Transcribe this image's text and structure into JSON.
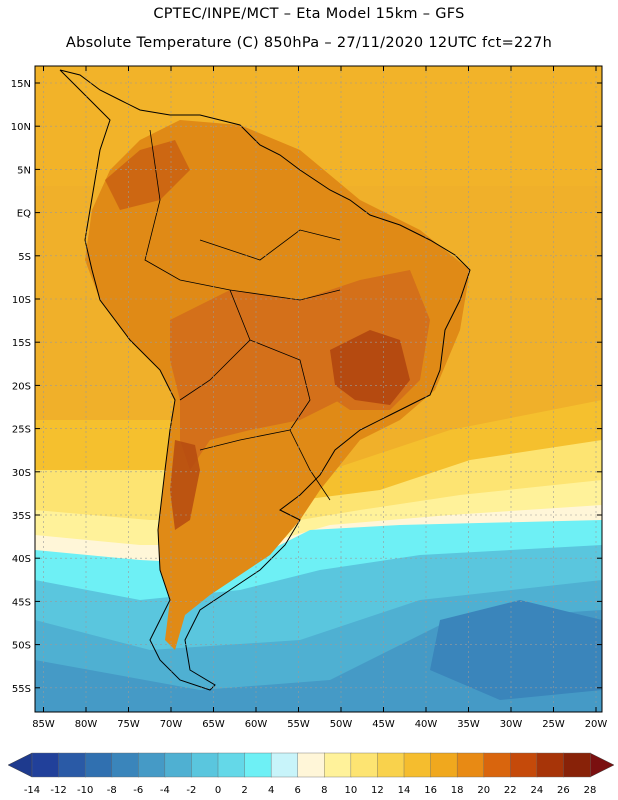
{
  "title_line1": "CPTEC/INPE/MCT –  Eta Model 15km – GFS",
  "title_line2": "Absolute Temperature (C) 850hPa – 27/11/2020 12UTC fct=227h",
  "lat_labels": [
    "15N",
    "10N",
    "5N",
    "EQ",
    "5S",
    "10S",
    "15S",
    "20S",
    "25S",
    "30S",
    "35S",
    "40S",
    "45S",
    "50S",
    "55S"
  ],
  "lon_labels": [
    "85W",
    "80W",
    "75W",
    "70W",
    "65W",
    "60W",
    "55W",
    "50W",
    "45W",
    "40W",
    "35W",
    "30W",
    "25W",
    "20W"
  ],
  "colorbar": {
    "labels": [
      "-14",
      "-12",
      "-10",
      "-8",
      "-6",
      "-4",
      "-2",
      "0",
      "2",
      "4",
      "6",
      "8",
      "10",
      "12",
      "14",
      "16",
      "18",
      "20",
      "22",
      "24",
      "26",
      "28"
    ],
    "colors": [
      "#21409a",
      "#2a5aa6",
      "#3070b0",
      "#3a85bb",
      "#459ac6",
      "#4fb0d2",
      "#5ac6de",
      "#64d8e8",
      "#6ef0f5",
      "#c8f4fa",
      "#fff6d8",
      "#fff29a",
      "#fde472",
      "#f9d24c",
      "#f5bd2e",
      "#f0a81e",
      "#e88a14",
      "#d9650d",
      "#c54a0a",
      "#a73408",
      "#882208"
    ],
    "end_low_color": "#1e3a8e",
    "end_high_color": "#7a1010"
  },
  "field_colors": {
    "ocean_warm": "#f0b02a",
    "ocean_warm2": "#f5c02e",
    "ocean_mid": "#fde472",
    "ocean_light": "#fff29a",
    "ocean_pale": "#fff6d8",
    "ocean_cyan": "#6ef0f5",
    "ocean_cyan2": "#5ac6de",
    "ocean_blue": "#4fb0d2",
    "ocean_blue2": "#459ac6",
    "ocean_deep": "#3a85bb",
    "land_hot": "#e08a16",
    "land_hotter": "#d4701a",
    "land_hottest": "#b54a10"
  }
}
